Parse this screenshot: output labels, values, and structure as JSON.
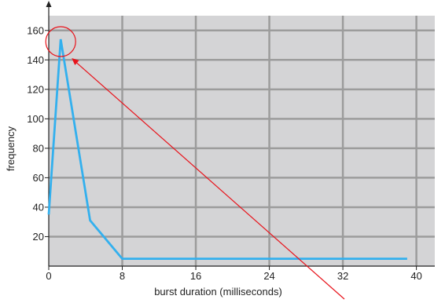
{
  "chart_data": {
    "type": "line",
    "xlabel": "burst duration (milliseconds)",
    "ylabel": "frequency",
    "xlim": [
      0,
      42
    ],
    "ylim": [
      0,
      170
    ],
    "x_ticks": [
      0,
      8,
      16,
      24,
      32,
      40
    ],
    "y_ticks": [
      20,
      40,
      60,
      80,
      100,
      120,
      140,
      160
    ],
    "grid": true,
    "series": [
      {
        "x": [
          0,
          1.3,
          4.5,
          8,
          39
        ],
        "y": [
          35,
          154,
          31,
          5,
          5
        ]
      }
    ],
    "annotation": {
      "type": "circle-with-arrow",
      "marks_point": [
        1.3,
        154
      ]
    }
  },
  "colors": {
    "plot_background": "#d4d4d6",
    "grid": "#9c9c9c",
    "line": "#33b0ee",
    "annotation": "#e8141c",
    "axis": "#222222"
  }
}
